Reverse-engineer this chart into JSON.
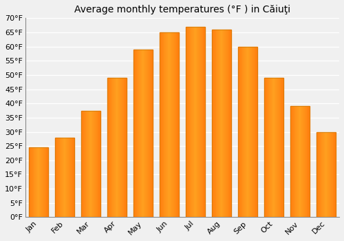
{
  "title": "Average monthly temperatures (°F ) in Căiuţi",
  "months": [
    "Jan",
    "Feb",
    "Mar",
    "Apr",
    "May",
    "Jun",
    "Jul",
    "Aug",
    "Sep",
    "Oct",
    "Nov",
    "Dec"
  ],
  "values": [
    24.5,
    28.0,
    37.5,
    49.0,
    59.0,
    65.0,
    67.0,
    66.0,
    60.0,
    49.0,
    39.0,
    30.0
  ],
  "ylim": [
    0,
    70
  ],
  "yticks": [
    0,
    5,
    10,
    15,
    20,
    25,
    30,
    35,
    40,
    45,
    50,
    55,
    60,
    65,
    70
  ],
  "ytick_labels": [
    "0°F",
    "5°F",
    "10°F",
    "15°F",
    "20°F",
    "25°F",
    "30°F",
    "35°F",
    "40°F",
    "45°F",
    "50°F",
    "55°F",
    "60°F",
    "65°F",
    "70°F"
  ],
  "background_color": "#f0f0f0",
  "grid_color": "#ffffff",
  "bar_color_center": "#FFD060",
  "bar_color_edge": "#FFA020",
  "title_fontsize": 10,
  "tick_fontsize": 8,
  "bar_width": 0.75
}
